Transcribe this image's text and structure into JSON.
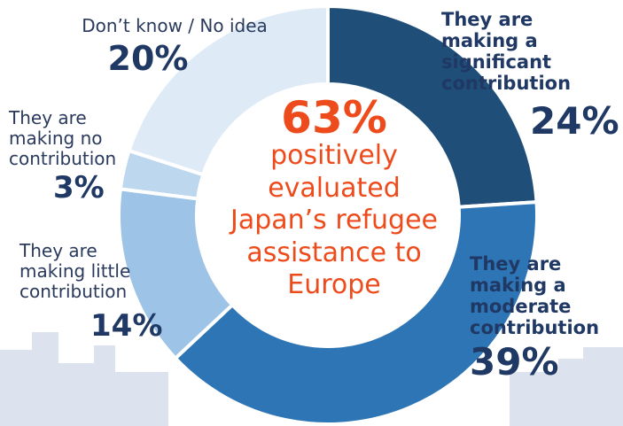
{
  "chart_data": {
    "type": "pie",
    "variant": "donut",
    "categories": [
      "They are making a significant contribution",
      "They are making a moderate contribution",
      "They are making little contribution",
      "They are making no contribution",
      "Don’t know / No idea"
    ],
    "values": [
      24,
      39,
      14,
      3,
      20
    ],
    "value_labels": [
      "24%",
      "39%",
      "14%",
      "3%",
      "20%"
    ],
    "colors": [
      "#1f4e79",
      "#2e75b6",
      "#9dc3e6",
      "#bdd7ee",
      "#deebf7"
    ],
    "label_lines": [
      "They are\nmaking a\nsignificant\ncontribution",
      "They are\nmaking a\nmoderate\ncontribution",
      "They are\nmaking little\ncontribution",
      "They are\nmaking no\ncontribution",
      "Don’t know / No idea"
    ],
    "center_value": "63%",
    "center_text": "positively\nevaluated\nJapan’s refugee\nassistance to\nEurope",
    "center_color": "#ee4b1c",
    "label_color": "#1f3864"
  }
}
